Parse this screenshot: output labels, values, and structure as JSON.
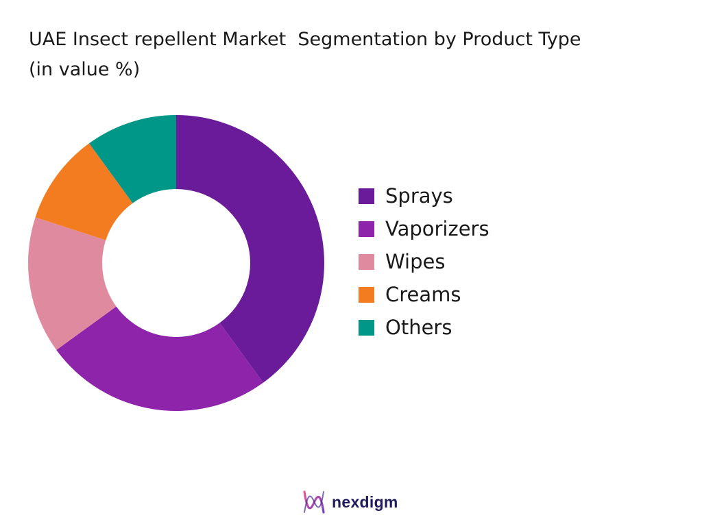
{
  "chart_data": {
    "type": "pie",
    "title": "UAE Insect repellent Market  Segmentation by Product Type",
    "subtitle": "(in value %)",
    "categories": [
      "Sprays",
      "Vaporizers",
      "Wipes",
      "Creams",
      "Others"
    ],
    "values": [
      40,
      25,
      15,
      10,
      10
    ],
    "colors": [
      "#6a1b9a",
      "#8e24aa",
      "#e08aa0",
      "#f47c20",
      "#009688"
    ],
    "legend_position": "right",
    "donut": true
  },
  "brand": {
    "name": "nexdigm",
    "logo_icon": "nexdigm-wave-icon"
  }
}
